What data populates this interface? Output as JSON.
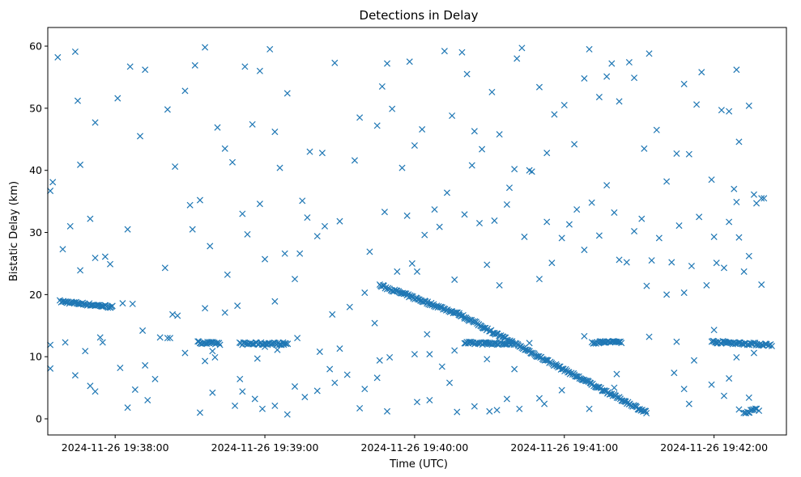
{
  "chart_data": {
    "type": "scatter",
    "title": "Detections in Delay",
    "xlabel": "Time (UTC)",
    "ylabel": "Bistatic Delay (km)",
    "x_ticks": [
      "2024-11-26 19:38:00",
      "2024-11-26 19:39:00",
      "2024-11-26 19:40:00",
      "2024-11-26 19:41:00",
      "2024-11-26 19:42:00"
    ],
    "x_tick_values": [
      "19:38:00",
      "19:39:00",
      "19:40:00",
      "19:41:00",
      "19:42:00"
    ],
    "xlim": [
      "19:37:33",
      "19:42:29"
    ],
    "y_ticks": [
      "0",
      "10",
      "20",
      "30",
      "40",
      "50",
      "60"
    ],
    "ylim": [
      -2.6,
      63
    ],
    "grid": false,
    "marker": "x",
    "color": "#1f77b4",
    "tracks": [
      {
        "start": "19:37:38",
        "end": "19:37:59",
        "y_start": 18.9,
        "y_end": 18.0
      },
      {
        "start": "19:38:33",
        "end": "19:38:42",
        "y_start": 12.3,
        "y_end": 12.1
      },
      {
        "start": "19:38:50",
        "end": "19:39:09",
        "y_start": 12.1,
        "y_end": 12.1
      },
      {
        "start": "19:39:46",
        "end": "19:40:18",
        "y_start": 21.5,
        "y_end": 16.8
      },
      {
        "start": "19:40:18",
        "end": "19:40:57",
        "y_start": 16.8,
        "y_end": 8.5
      },
      {
        "start": "19:40:57",
        "end": "19:41:33",
        "y_start": 8.5,
        "y_end": 1.0
      },
      {
        "start": "19:40:20",
        "end": "19:40:39",
        "y_start": 12.2,
        "y_end": 12.1
      },
      {
        "start": "19:41:11",
        "end": "19:41:23",
        "y_start": 12.3,
        "y_end": 12.4
      },
      {
        "start": "19:41:59",
        "end": "19:42:23",
        "y_start": 12.4,
        "y_end": 11.9
      },
      {
        "start": "19:42:12",
        "end": "19:42:17",
        "y_start": 0.8,
        "y_end": 1.6
      }
    ],
    "clutter": [
      [
        "19:37:34",
        36.7
      ],
      [
        "19:37:35",
        38.1
      ],
      [
        "19:37:37",
        58.2
      ],
      [
        "19:37:39",
        27.3
      ],
      [
        "19:37:42",
        31.0
      ],
      [
        "19:37:44",
        59.1
      ],
      [
        "19:37:45",
        51.2
      ],
      [
        "19:37:46",
        40.9
      ],
      [
        "19:37:50",
        32.2
      ],
      [
        "19:37:52",
        47.7
      ],
      [
        "19:37:56",
        26.1
      ],
      [
        "19:38:01",
        51.6
      ],
      [
        "19:38:05",
        30.5
      ],
      [
        "19:38:06",
        56.7
      ],
      [
        "19:38:10",
        45.5
      ],
      [
        "19:38:12",
        56.2
      ],
      [
        "19:38:20",
        24.3
      ],
      [
        "19:38:21",
        49.8
      ],
      [
        "19:38:24",
        40.6
      ],
      [
        "19:38:28",
        52.8
      ],
      [
        "19:38:31",
        30.5
      ],
      [
        "19:38:32",
        56.9
      ],
      [
        "19:38:36",
        59.8
      ],
      [
        "19:38:38",
        27.8
      ],
      [
        "19:38:41",
        46.9
      ],
      [
        "19:38:44",
        43.5
      ],
      [
        "19:38:47",
        41.3
      ],
      [
        "19:38:51",
        33.0
      ],
      [
        "19:38:52",
        56.7
      ],
      [
        "19:38:55",
        47.4
      ],
      [
        "19:38:58",
        56.0
      ],
      [
        "19:39:00",
        25.7
      ],
      [
        "19:39:02",
        59.5
      ],
      [
        "19:39:04",
        46.2
      ],
      [
        "19:39:06",
        40.4
      ],
      [
        "19:39:09",
        52.4
      ],
      [
        "19:39:15",
        35.1
      ],
      [
        "19:39:18",
        43.0
      ],
      [
        "19:39:23",
        42.8
      ],
      [
        "19:39:28",
        57.3
      ],
      [
        "19:39:36",
        41.6
      ],
      [
        "19:39:38",
        48.5
      ],
      [
        "19:39:42",
        26.9
      ],
      [
        "19:39:45",
        47.2
      ],
      [
        "19:39:47",
        53.5
      ],
      [
        "19:39:49",
        57.2
      ],
      [
        "19:39:51",
        49.9
      ],
      [
        "19:39:55",
        40.4
      ],
      [
        "19:39:58",
        57.5
      ],
      [
        "19:40:00",
        44.0
      ],
      [
        "19:40:03",
        46.6
      ],
      [
        "19:40:08",
        33.7
      ],
      [
        "19:40:12",
        59.2
      ],
      [
        "19:40:15",
        48.8
      ],
      [
        "19:40:19",
        59.0
      ],
      [
        "19:40:21",
        55.5
      ],
      [
        "19:40:24",
        46.3
      ],
      [
        "19:40:27",
        43.4
      ],
      [
        "19:40:31",
        52.6
      ],
      [
        "19:40:34",
        45.8
      ],
      [
        "19:40:38",
        37.2
      ],
      [
        "19:40:41",
        58.0
      ],
      [
        "19:40:43",
        59.7
      ],
      [
        "19:40:46",
        40.0
      ],
      [
        "19:40:50",
        53.4
      ],
      [
        "19:40:53",
        42.8
      ],
      [
        "19:40:56",
        49.0
      ],
      [
        "19:41:00",
        50.5
      ],
      [
        "19:41:04",
        44.2
      ],
      [
        "19:41:08",
        54.8
      ],
      [
        "19:41:10",
        59.5
      ],
      [
        "19:41:14",
        51.8
      ],
      [
        "19:41:17",
        55.1
      ],
      [
        "19:41:19",
        57.2
      ],
      [
        "19:41:22",
        51.1
      ],
      [
        "19:41:26",
        57.4
      ],
      [
        "19:41:28",
        54.9
      ],
      [
        "19:41:32",
        43.5
      ],
      [
        "19:41:34",
        58.8
      ],
      [
        "19:41:37",
        46.5
      ],
      [
        "19:41:41",
        38.2
      ],
      [
        "19:41:45",
        42.7
      ],
      [
        "19:41:48",
        53.9
      ],
      [
        "19:41:50",
        42.6
      ],
      [
        "19:41:53",
        50.6
      ],
      [
        "19:41:55",
        55.8
      ],
      [
        "19:41:59",
        38.5
      ],
      [
        "19:42:03",
        49.7
      ],
      [
        "19:42:06",
        49.5
      ],
      [
        "19:42:09",
        56.2
      ],
      [
        "19:42:10",
        44.6
      ],
      [
        "19:42:14",
        50.4
      ],
      [
        "19:42:16",
        36.1
      ],
      [
        "19:42:20",
        35.5
      ],
      [
        "19:42:19",
        21.6
      ],
      [
        "19:42:18",
        1.3
      ],
      [
        "19:37:34",
        11.9
      ],
      [
        "19:37:34",
        8.1
      ],
      [
        "19:37:40",
        12.3
      ],
      [
        "19:37:44",
        7.0
      ],
      [
        "19:37:48",
        10.9
      ],
      [
        "19:37:50",
        5.3
      ],
      [
        "19:37:52",
        4.4
      ],
      [
        "19:37:54",
        13.1
      ],
      [
        "19:37:55",
        12.3
      ],
      [
        "19:38:02",
        8.2
      ],
      [
        "19:38:05",
        1.8
      ],
      [
        "19:38:08",
        4.7
      ],
      [
        "19:38:13",
        3.0
      ],
      [
        "19:38:16",
        6.4
      ],
      [
        "19:38:23",
        16.8
      ],
      [
        "19:38:28",
        10.6
      ],
      [
        "19:38:34",
        1.0
      ],
      [
        "19:38:36",
        9.3
      ],
      [
        "19:38:39",
        4.2
      ],
      [
        "19:38:44",
        17.1
      ],
      [
        "19:38:48",
        2.1
      ],
      [
        "19:38:51",
        4.4
      ],
      [
        "19:38:56",
        3.2
      ],
      [
        "19:38:59",
        1.6
      ],
      [
        "19:39:04",
        2.1
      ],
      [
        "19:39:09",
        0.7
      ],
      [
        "19:39:12",
        5.2
      ],
      [
        "19:39:16",
        3.5
      ],
      [
        "19:39:21",
        4.5
      ],
      [
        "19:39:26",
        8.0
      ],
      [
        "19:39:28",
        5.8
      ],
      [
        "19:39:33",
        7.1
      ],
      [
        "19:39:38",
        1.7
      ],
      [
        "19:39:45",
        6.6
      ],
      [
        "19:39:49",
        1.2
      ],
      [
        "19:40:01",
        2.7
      ],
      [
        "19:40:06",
        3.0
      ],
      [
        "19:40:11",
        8.4
      ],
      [
        "19:40:14",
        5.8
      ],
      [
        "19:40:17",
        1.1
      ],
      [
        "19:40:24",
        2.0
      ],
      [
        "19:40:30",
        1.2
      ],
      [
        "19:40:33",
        1.4
      ],
      [
        "19:40:37",
        3.2
      ],
      [
        "19:40:42",
        1.6
      ],
      [
        "19:40:50",
        3.3
      ],
      [
        "19:40:52",
        2.4
      ],
      [
        "19:40:59",
        4.6
      ],
      [
        "19:41:10",
        1.6
      ],
      [
        "19:41:20",
        5.0
      ],
      [
        "19:41:44",
        7.4
      ],
      [
        "19:41:48",
        4.8
      ],
      [
        "19:41:50",
        2.4
      ],
      [
        "19:41:59",
        5.5
      ],
      [
        "19:42:04",
        3.7
      ],
      [
        "19:42:06",
        6.5
      ],
      [
        "19:42:10",
        1.5
      ],
      [
        "19:42:14",
        3.4
      ],
      [
        "19:37:46",
        23.9
      ],
      [
        "19:37:52",
        25.9
      ],
      [
        "19:37:58",
        24.9
      ],
      [
        "19:38:03",
        18.6
      ],
      [
        "19:38:07",
        18.5
      ],
      [
        "19:38:11",
        14.2
      ],
      [
        "19:38:18",
        13.1
      ],
      [
        "19:38:22",
        13.0
      ],
      [
        "19:38:25",
        16.6
      ],
      [
        "19:38:30",
        34.4
      ],
      [
        "19:38:34",
        35.2
      ],
      [
        "19:38:36",
        17.8
      ],
      [
        "19:38:40",
        9.9
      ],
      [
        "19:38:45",
        23.2
      ],
      [
        "19:38:49",
        18.2
      ],
      [
        "19:38:53",
        29.7
      ],
      [
        "19:38:58",
        34.6
      ],
      [
        "19:39:00",
        11.6
      ],
      [
        "19:39:04",
        18.9
      ],
      [
        "19:39:08",
        26.6
      ],
      [
        "19:39:12",
        22.5
      ],
      [
        "19:39:14",
        26.6
      ],
      [
        "19:39:17",
        32.4
      ],
      [
        "19:39:21",
        29.4
      ],
      [
        "19:39:24",
        31.0
      ],
      [
        "19:39:27",
        16.8
      ],
      [
        "19:39:30",
        31.8
      ],
      [
        "19:39:34",
        18.0
      ],
      [
        "19:39:40",
        20.3
      ],
      [
        "19:39:44",
        15.4
      ],
      [
        "19:39:46",
        9.4
      ],
      [
        "19:39:48",
        33.3
      ],
      [
        "19:39:53",
        23.7
      ],
      [
        "19:39:57",
        32.7
      ],
      [
        "19:39:59",
        25.0
      ],
      [
        "19:40:01",
        23.7
      ],
      [
        "19:40:04",
        29.6
      ],
      [
        "19:40:06",
        10.4
      ],
      [
        "19:40:10",
        30.9
      ],
      [
        "19:40:13",
        36.4
      ],
      [
        "19:40:16",
        22.4
      ],
      [
        "19:40:20",
        32.9
      ],
      [
        "19:40:23",
        40.8
      ],
      [
        "19:40:26",
        31.5
      ],
      [
        "19:40:29",
        24.8
      ],
      [
        "19:40:32",
        31.9
      ],
      [
        "19:40:34",
        21.5
      ],
      [
        "19:40:37",
        34.5
      ],
      [
        "19:40:40",
        40.2
      ],
      [
        "19:40:44",
        29.3
      ],
      [
        "19:40:47",
        39.8
      ],
      [
        "19:40:50",
        22.5
      ],
      [
        "19:40:53",
        31.7
      ],
      [
        "19:40:55",
        25.1
      ],
      [
        "19:40:59",
        29.1
      ],
      [
        "19:41:02",
        31.3
      ],
      [
        "19:41:05",
        33.7
      ],
      [
        "19:41:08",
        27.2
      ],
      [
        "19:41:11",
        34.8
      ],
      [
        "19:41:14",
        29.5
      ],
      [
        "19:41:17",
        37.6
      ],
      [
        "19:41:20",
        33.2
      ],
      [
        "19:41:22",
        25.6
      ],
      [
        "19:41:25",
        25.2
      ],
      [
        "19:41:28",
        30.2
      ],
      [
        "19:41:31",
        32.2
      ],
      [
        "19:41:33",
        21.4
      ],
      [
        "19:41:35",
        25.5
      ],
      [
        "19:41:38",
        29.1
      ],
      [
        "19:41:41",
        20.0
      ],
      [
        "19:41:43",
        25.2
      ],
      [
        "19:41:46",
        31.1
      ],
      [
        "19:41:48",
        20.3
      ],
      [
        "19:41:51",
        24.6
      ],
      [
        "19:41:54",
        32.5
      ],
      [
        "19:41:57",
        21.5
      ],
      [
        "19:42:00",
        29.3
      ],
      [
        "19:42:01",
        25.1
      ],
      [
        "19:42:04",
        24.3
      ],
      [
        "19:42:08",
        37.0
      ],
      [
        "19:42:10",
        29.2
      ],
      [
        "19:42:12",
        23.7
      ],
      [
        "19:42:14",
        26.2
      ],
      [
        "19:42:17",
        34.7
      ],
      [
        "19:42:19",
        35.5
      ],
      [
        "19:42:06",
        31.7
      ],
      [
        "19:42:09",
        34.9
      ],
      [
        "19:38:12",
        8.6
      ],
      [
        "19:38:21",
        13.0
      ],
      [
        "19:38:39",
        10.9
      ],
      [
        "19:38:50",
        6.4
      ],
      [
        "19:38:57",
        9.7
      ],
      [
        "19:39:05",
        11.1
      ],
      [
        "19:39:13",
        13.0
      ],
      [
        "19:39:22",
        10.8
      ],
      [
        "19:39:30",
        11.3
      ],
      [
        "19:39:40",
        4.8
      ],
      [
        "19:39:50",
        9.9
      ],
      [
        "19:40:00",
        10.4
      ],
      [
        "19:40:05",
        13.6
      ],
      [
        "19:40:16",
        11.0
      ],
      [
        "19:40:29",
        9.6
      ],
      [
        "19:40:40",
        8.0
      ],
      [
        "19:40:46",
        12.2
      ],
      [
        "19:41:08",
        13.3
      ],
      [
        "19:41:21",
        7.2
      ],
      [
        "19:41:34",
        13.2
      ],
      [
        "19:41:45",
        12.4
      ],
      [
        "19:41:52",
        9.4
      ],
      [
        "19:42:00",
        14.3
      ],
      [
        "19:42:09",
        9.9
      ],
      [
        "19:42:16",
        10.6
      ]
    ]
  }
}
